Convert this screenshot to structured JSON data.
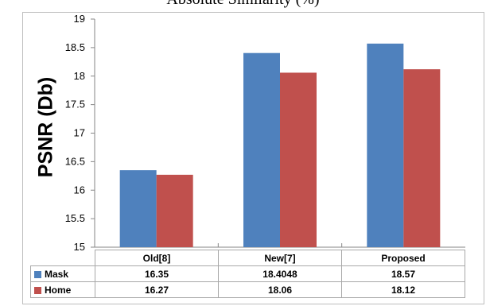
{
  "caption_fragment": "Absolute Similarity (%)",
  "chart_data": {
    "type": "bar",
    "ylabel": "PSNR (Db)",
    "xlabel": "",
    "title": "",
    "categories": [
      "Old[8]",
      "New[7]",
      "Proposed"
    ],
    "ylim": [
      15,
      19
    ],
    "yticks": [
      15,
      15.5,
      16,
      16.5,
      17,
      17.5,
      18,
      18.5,
      19
    ],
    "grid": false,
    "legend": "data-table-below",
    "series": [
      {
        "name": "Mask",
        "color": "#4f81bd",
        "values": [
          16.35,
          18.4048,
          18.57
        ],
        "labels": [
          "16.35",
          "18.4048",
          "18.57"
        ]
      },
      {
        "name": "Home",
        "color": "#c0504d",
        "values": [
          16.27,
          18.06,
          18.12
        ],
        "labels": [
          "16.27",
          "18.06",
          "18.12"
        ]
      }
    ]
  }
}
